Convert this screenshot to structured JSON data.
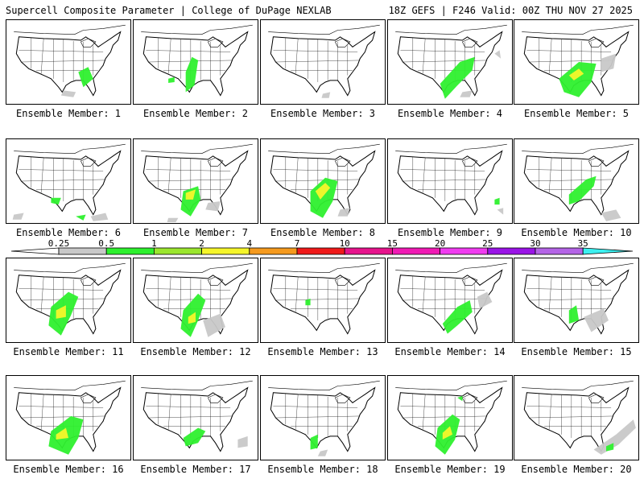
{
  "header": {
    "title": "Supercell Composite Parameter | College of DuPage NEXLAB",
    "run_info": "18Z GEFS | F246 Valid: 00Z THU NOV 27 2025"
  },
  "legend": {
    "ticks": [
      "0.25",
      "0.5",
      "1",
      "2",
      "4",
      "7",
      "10",
      "15",
      "20",
      "25",
      "30",
      "35"
    ],
    "colors": [
      "#c8c8c8",
      "#2ef02e",
      "#9be62e",
      "#f5f52a",
      "#f59a1e",
      "#f01a1a",
      "#e6148c",
      "#f01ab4",
      "#f03cf0",
      "#9a14e6",
      "#b464e6",
      "#3cf0f0"
    ]
  },
  "panels": [
    {
      "label": "Ensemble Member: 1",
      "blobs": [
        [
          "green",
          [
            [
              0.58,
              0.62
            ],
            [
              0.66,
              0.56
            ],
            [
              0.7,
              0.7
            ],
            [
              0.62,
              0.8
            ]
          ]
        ],
        [
          "gray",
          [
            [
              0.46,
              0.84
            ],
            [
              0.56,
              0.86
            ],
            [
              0.54,
              0.92
            ],
            [
              0.44,
              0.9
            ]
          ]
        ]
      ]
    },
    {
      "label": "Ensemble Member: 2",
      "blobs": [
        [
          "green",
          [
            [
              0.42,
              0.62
            ],
            [
              0.47,
              0.44
            ],
            [
              0.52,
              0.48
            ],
            [
              0.49,
              0.78
            ],
            [
              0.42,
              0.86
            ]
          ]
        ],
        [
          "green",
          [
            [
              0.28,
              0.7
            ],
            [
              0.33,
              0.68
            ],
            [
              0.33,
              0.74
            ],
            [
              0.28,
              0.75
            ]
          ]
        ]
      ]
    },
    {
      "label": "Ensemble Member: 3",
      "blobs": [
        [
          "gray",
          [
            [
              0.5,
              0.88
            ],
            [
              0.56,
              0.86
            ],
            [
              0.55,
              0.93
            ],
            [
              0.49,
              0.93
            ]
          ]
        ]
      ]
    },
    {
      "label": "Ensemble Member: 4",
      "blobs": [
        [
          "green",
          [
            [
              0.42,
              0.76
            ],
            [
              0.58,
              0.5
            ],
            [
              0.7,
              0.44
            ],
            [
              0.68,
              0.6
            ],
            [
              0.56,
              0.78
            ],
            [
              0.46,
              0.94
            ]
          ]
        ],
        [
          "gray",
          [
            [
              0.6,
              0.86
            ],
            [
              0.68,
              0.84
            ],
            [
              0.66,
              0.92
            ],
            [
              0.58,
              0.92
            ]
          ]
        ],
        [
          "gray",
          [
            [
              0.86,
              0.4
            ],
            [
              0.9,
              0.36
            ],
            [
              0.91,
              0.46
            ]
          ]
        ]
      ]
    },
    {
      "label": "Ensemble Member: 5",
      "blobs": [
        [
          "green",
          [
            [
              0.36,
              0.7
            ],
            [
              0.52,
              0.5
            ],
            [
              0.66,
              0.52
            ],
            [
              0.62,
              0.74
            ],
            [
              0.52,
              0.92
            ],
            [
              0.4,
              0.86
            ]
          ]
        ],
        [
          "yellow",
          [
            [
              0.44,
              0.66
            ],
            [
              0.52,
              0.58
            ],
            [
              0.56,
              0.64
            ],
            [
              0.48,
              0.72
            ]
          ]
        ],
        [
          "gray",
          [
            [
              0.7,
              0.46
            ],
            [
              0.82,
              0.4
            ],
            [
              0.8,
              0.58
            ],
            [
              0.7,
              0.62
            ]
          ]
        ]
      ]
    },
    {
      "label": "Ensemble Member: 6",
      "blobs": [
        [
          "green",
          [
            [
              0.36,
              0.7
            ],
            [
              0.44,
              0.7
            ],
            [
              0.42,
              0.78
            ],
            [
              0.36,
              0.76
            ]
          ]
        ],
        [
          "gray",
          [
            [
              0.06,
              0.9
            ],
            [
              0.14,
              0.88
            ],
            [
              0.12,
              0.96
            ],
            [
              0.05,
              0.96
            ]
          ]
        ],
        [
          "green",
          [
            [
              0.56,
              0.92
            ],
            [
              0.64,
              0.9
            ],
            [
              0.62,
              0.97
            ]
          ]
        ],
        [
          "gray",
          [
            [
              0.68,
              0.92
            ],
            [
              0.8,
              0.88
            ],
            [
              0.82,
              0.96
            ],
            [
              0.7,
              0.98
            ]
          ]
        ]
      ]
    },
    {
      "label": "Ensemble Member: 7",
      "blobs": [
        [
          "green",
          [
            [
              0.4,
              0.62
            ],
            [
              0.52,
              0.56
            ],
            [
              0.54,
              0.72
            ],
            [
              0.46,
              0.92
            ],
            [
              0.38,
              0.84
            ]
          ]
        ],
        [
          "yellow",
          [
            [
              0.42,
              0.64
            ],
            [
              0.5,
              0.6
            ],
            [
              0.48,
              0.72
            ],
            [
              0.42,
              0.72
            ]
          ]
        ],
        [
          "gray",
          [
            [
              0.6,
              0.76
            ],
            [
              0.7,
              0.74
            ],
            [
              0.68,
              0.86
            ],
            [
              0.58,
              0.84
            ]
          ]
        ],
        [
          "gray",
          [
            [
              0.28,
              0.94
            ],
            [
              0.36,
              0.94
            ],
            [
              0.34,
              0.99
            ],
            [
              0.27,
              0.99
            ]
          ]
        ]
      ]
    },
    {
      "label": "Ensemble Member: 8",
      "blobs": [
        [
          "green",
          [
            [
              0.4,
              0.62
            ],
            [
              0.52,
              0.46
            ],
            [
              0.62,
              0.5
            ],
            [
              0.58,
              0.74
            ],
            [
              0.5,
              0.94
            ],
            [
              0.4,
              0.86
            ]
          ]
        ],
        [
          "yellow",
          [
            [
              0.44,
              0.62
            ],
            [
              0.52,
              0.52
            ],
            [
              0.56,
              0.58
            ],
            [
              0.48,
              0.72
            ]
          ]
        ],
        [
          "gray",
          [
            [
              0.64,
              0.84
            ],
            [
              0.72,
              0.82
            ],
            [
              0.7,
              0.92
            ],
            [
              0.62,
              0.92
            ]
          ]
        ]
      ]
    },
    {
      "label": "Ensemble Member: 9",
      "blobs": [
        [
          "green",
          [
            [
              0.86,
              0.72
            ],
            [
              0.9,
              0.7
            ],
            [
              0.9,
              0.78
            ],
            [
              0.86,
              0.78
            ]
          ]
        ],
        [
          "gray",
          [
            [
              0.88,
              0.84
            ],
            [
              0.93,
              0.82
            ],
            [
              0.93,
              0.9
            ]
          ]
        ]
      ]
    },
    {
      "label": "Ensemble Member: 10",
      "blobs": [
        [
          "green",
          [
            [
              0.44,
              0.66
            ],
            [
              0.58,
              0.48
            ],
            [
              0.66,
              0.44
            ],
            [
              0.64,
              0.56
            ],
            [
              0.52,
              0.74
            ],
            [
              0.44,
              0.78
            ]
          ]
        ],
        [
          "gray",
          [
            [
              0.7,
              0.88
            ],
            [
              0.82,
              0.84
            ],
            [
              0.86,
              0.94
            ],
            [
              0.74,
              0.98
            ]
          ]
        ]
      ]
    },
    {
      "label": "Ensemble Member: 11",
      "blobs": [
        [
          "green",
          [
            [
              0.36,
              0.58
            ],
            [
              0.5,
              0.4
            ],
            [
              0.58,
              0.46
            ],
            [
              0.52,
              0.68
            ],
            [
              0.44,
              0.92
            ],
            [
              0.34,
              0.8
            ]
          ]
        ],
        [
          "yellow",
          [
            [
              0.4,
              0.62
            ],
            [
              0.48,
              0.56
            ],
            [
              0.48,
              0.7
            ],
            [
              0.4,
              0.72
            ]
          ]
        ]
      ]
    },
    {
      "label": "Ensemble Member: 12",
      "blobs": [
        [
          "green",
          [
            [
              0.4,
              0.62
            ],
            [
              0.52,
              0.42
            ],
            [
              0.58,
              0.5
            ],
            [
              0.52,
              0.74
            ],
            [
              0.46,
              0.94
            ],
            [
              0.38,
              0.84
            ]
          ]
        ],
        [
          "yellow",
          [
            [
              0.44,
              0.7
            ],
            [
              0.5,
              0.64
            ],
            [
              0.5,
              0.76
            ],
            [
              0.44,
              0.78
            ]
          ]
        ],
        [
          "gray",
          [
            [
              0.56,
              0.74
            ],
            [
              0.7,
              0.66
            ],
            [
              0.74,
              0.82
            ],
            [
              0.6,
              0.94
            ]
          ]
        ]
      ]
    },
    {
      "label": "Ensemble Member: 13",
      "blobs": [
        [
          "green",
          [
            [
              0.36,
              0.5
            ],
            [
              0.4,
              0.48
            ],
            [
              0.4,
              0.56
            ],
            [
              0.36,
              0.56
            ]
          ]
        ]
      ]
    },
    {
      "label": "Ensemble Member: 14",
      "blobs": [
        [
          "green",
          [
            [
              0.44,
              0.78
            ],
            [
              0.56,
              0.58
            ],
            [
              0.66,
              0.5
            ],
            [
              0.68,
              0.64
            ],
            [
              0.56,
              0.8
            ],
            [
              0.48,
              0.9
            ]
          ]
        ],
        [
          "gray",
          [
            [
              0.72,
              0.46
            ],
            [
              0.8,
              0.4
            ],
            [
              0.84,
              0.52
            ],
            [
              0.74,
              0.6
            ]
          ]
        ]
      ]
    },
    {
      "label": "Ensemble Member: 15",
      "blobs": [
        [
          "green",
          [
            [
              0.44,
              0.62
            ],
            [
              0.5,
              0.56
            ],
            [
              0.52,
              0.74
            ],
            [
              0.44,
              0.78
            ]
          ]
        ],
        [
          "gray",
          [
            [
              0.56,
              0.7
            ],
            [
              0.72,
              0.6
            ],
            [
              0.76,
              0.74
            ],
            [
              0.62,
              0.88
            ]
          ]
        ]
      ]
    },
    {
      "label": "Ensemble Member: 16",
      "blobs": [
        [
          "green",
          [
            [
              0.36,
              0.66
            ],
            [
              0.52,
              0.48
            ],
            [
              0.62,
              0.52
            ],
            [
              0.58,
              0.74
            ],
            [
              0.5,
              0.94
            ],
            [
              0.34,
              0.84
            ]
          ]
        ],
        [
          "yellow",
          [
            [
              0.4,
              0.7
            ],
            [
              0.48,
              0.62
            ],
            [
              0.5,
              0.74
            ],
            [
              0.4,
              0.76
            ]
          ]
        ]
      ]
    },
    {
      "label": "Ensemble Member: 17",
      "blobs": [
        [
          "green",
          [
            [
              0.4,
              0.74
            ],
            [
              0.52,
              0.62
            ],
            [
              0.58,
              0.66
            ],
            [
              0.52,
              0.8
            ],
            [
              0.42,
              0.84
            ]
          ]
        ],
        [
          "gray",
          [
            [
              0.84,
              0.76
            ],
            [
              0.92,
              0.72
            ],
            [
              0.92,
              0.84
            ],
            [
              0.84,
              0.86
            ]
          ]
        ]
      ]
    },
    {
      "label": "Ensemble Member: 18",
      "blobs": [
        [
          "green",
          [
            [
              0.4,
              0.74
            ],
            [
              0.46,
              0.7
            ],
            [
              0.46,
              0.86
            ],
            [
              0.4,
              0.88
            ]
          ]
        ],
        [
          "gray",
          [
            [
              0.48,
              0.9
            ],
            [
              0.54,
              0.88
            ],
            [
              0.52,
              0.96
            ],
            [
              0.46,
              0.96
            ]
          ]
        ]
      ]
    },
    {
      "label": "Ensemble Member: 19",
      "blobs": [
        [
          "green",
          [
            [
              0.4,
              0.62
            ],
            [
              0.52,
              0.46
            ],
            [
              0.58,
              0.52
            ],
            [
              0.54,
              0.76
            ],
            [
              0.46,
              0.94
            ],
            [
              0.38,
              0.84
            ]
          ]
        ],
        [
          "yellow",
          [
            [
              0.44,
              0.68
            ],
            [
              0.5,
              0.6
            ],
            [
              0.52,
              0.7
            ],
            [
              0.44,
              0.76
            ]
          ]
        ],
        [
          "green",
          [
            [
              0.56,
              0.26
            ],
            [
              0.6,
              0.24
            ],
            [
              0.6,
              0.3
            ]
          ]
        ]
      ]
    },
    {
      "label": "Ensemble Member: 20",
      "blobs": [
        [
          "gray",
          [
            [
              0.64,
              0.88
            ],
            [
              0.82,
              0.7
            ],
            [
              0.96,
              0.52
            ],
            [
              0.98,
              0.62
            ],
            [
              0.84,
              0.82
            ],
            [
              0.7,
              0.94
            ]
          ]
        ],
        [
          "green",
          [
            [
              0.74,
              0.84
            ],
            [
              0.8,
              0.8
            ],
            [
              0.8,
              0.88
            ],
            [
              0.74,
              0.9
            ]
          ]
        ]
      ]
    }
  ]
}
